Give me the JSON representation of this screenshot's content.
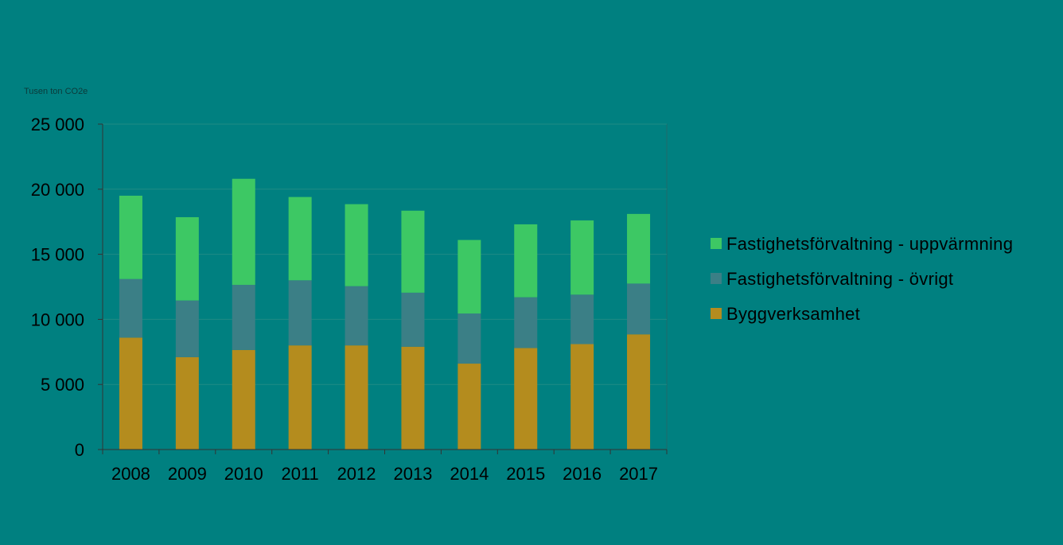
{
  "chart_data": {
    "type": "bar",
    "stacked": true,
    "unit_label": "Tusen ton CO2e",
    "categories": [
      "2008",
      "2009",
      "2010",
      "2011",
      "2012",
      "2013",
      "2014",
      "2015",
      "2016",
      "2017"
    ],
    "series": [
      {
        "name": "Byggverksamhet",
        "color": "#b48c1e",
        "values": [
          8600,
          7100,
          7650,
          8000,
          8000,
          7900,
          6600,
          7800,
          8100,
          8850
        ]
      },
      {
        "name": "Fastighetsförvaltning - övrigt",
        "color": "#3b7f86",
        "values": [
          4500,
          4350,
          5000,
          5000,
          4550,
          4150,
          3850,
          3900,
          3800,
          3900
        ]
      },
      {
        "name": "Fastighetsförvaltning - uppvärmning",
        "color": "#3dc864",
        "values": [
          6400,
          6400,
          8150,
          6400,
          6300,
          6300,
          5650,
          5600,
          5700,
          5350
        ]
      }
    ],
    "yticks": [
      "0",
      "5 000",
      "10 000",
      "15 000",
      "20 000",
      "25 000"
    ],
    "ylim": [
      0,
      25000
    ],
    "legend_order": [
      "Fastighetsförvaltning - uppvärmning",
      "Fastighetsförvaltning - övrigt",
      "Byggverksamhet"
    ],
    "legend_position": "right",
    "grid": true
  }
}
